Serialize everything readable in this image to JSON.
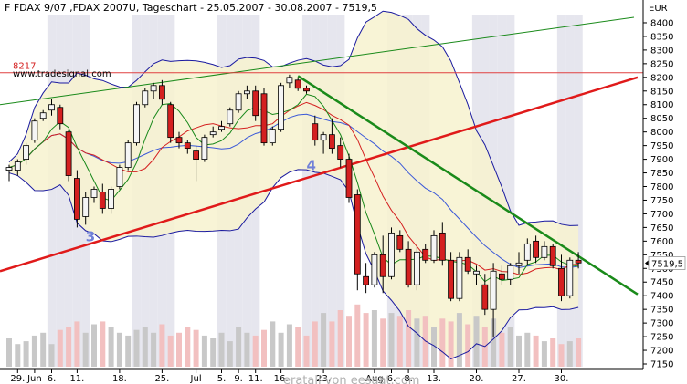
{
  "header": {
    "title": "F FDAX 9/07 ,FDAX 2007U, Tageschart - 25.05.2007 - 30.08.2007 - 7519,5",
    "watermark_top": "www.tradesignal.com",
    "watermark_bottom": "eratall von eesaat.com"
  },
  "chart_data": {
    "type": "candlestick",
    "currency_label": "EUR",
    "y_ticks": [
      "8400",
      "8350",
      "8300",
      "8250",
      "8200",
      "8150",
      "8100",
      "8050",
      "8000",
      "7950",
      "7900",
      "7850",
      "7800",
      "7750",
      "7700",
      "7650",
      "7600",
      "7550",
      "7500",
      "7450",
      "7400",
      "7350",
      "7300",
      "7250",
      "7200",
      "7150"
    ],
    "ylim": [
      7140,
      8430
    ],
    "x_ticks": [
      {
        "label": "29.",
        "i": 1
      },
      {
        "label": "Jun",
        "i": 3
      },
      {
        "label": "6.",
        "i": 5
      },
      {
        "label": "11.",
        "i": 8
      },
      {
        "label": "18.",
        "i": 13
      },
      {
        "label": "25.",
        "i": 18
      },
      {
        "label": "Jul",
        "i": 22
      },
      {
        "label": "5.",
        "i": 25
      },
      {
        "label": "9.",
        "i": 27
      },
      {
        "label": "11.",
        "i": 29
      },
      {
        "label": "16.",
        "i": 32
      },
      {
        "label": "23.",
        "i": 37
      },
      {
        "label": "Aug",
        "i": 43
      },
      {
        "label": "6.",
        "i": 45
      },
      {
        "label": "8.",
        "i": 47
      },
      {
        "label": "13.",
        "i": 50
      },
      {
        "label": "20.",
        "i": 55
      },
      {
        "label": "27.",
        "i": 60
      },
      {
        "label": "30.",
        "i": 65
      }
    ],
    "last_price_label": "7519,5",
    "last_price": 7519.5,
    "level_label": "8217",
    "level_value": 8217,
    "wave_labels": [
      {
        "text": "3",
        "i": 9,
        "price": 7600
      },
      {
        "text": "4",
        "i": 35,
        "price": 7860
      }
    ],
    "candles": [
      {
        "o": 7860,
        "h": 7880,
        "l": 7820,
        "c": 7870
      },
      {
        "o": 7860,
        "h": 7900,
        "l": 7840,
        "c": 7890
      },
      {
        "o": 7900,
        "h": 7960,
        "l": 7880,
        "c": 7950
      },
      {
        "o": 7970,
        "h": 8050,
        "l": 7960,
        "c": 8040
      },
      {
        "o": 8050,
        "h": 8080,
        "l": 8040,
        "c": 8070
      },
      {
        "o": 8080,
        "h": 8120,
        "l": 8060,
        "c": 8100
      },
      {
        "o": 8090,
        "h": 8100,
        "l": 8010,
        "c": 8030
      },
      {
        "o": 8000,
        "h": 8010,
        "l": 7820,
        "c": 7840
      },
      {
        "o": 7830,
        "h": 7860,
        "l": 7650,
        "c": 7680
      },
      {
        "o": 7690,
        "h": 7780,
        "l": 7660,
        "c": 7760
      },
      {
        "o": 7760,
        "h": 7800,
        "l": 7740,
        "c": 7790
      },
      {
        "o": 7780,
        "h": 7810,
        "l": 7700,
        "c": 7720
      },
      {
        "o": 7720,
        "h": 7800,
        "l": 7700,
        "c": 7790
      },
      {
        "o": 7800,
        "h": 7880,
        "l": 7790,
        "c": 7870
      },
      {
        "o": 7870,
        "h": 7970,
        "l": 7860,
        "c": 7960
      },
      {
        "o": 7960,
        "h": 8110,
        "l": 7950,
        "c": 8100
      },
      {
        "o": 8100,
        "h": 8160,
        "l": 8090,
        "c": 8150
      },
      {
        "o": 8150,
        "h": 8180,
        "l": 8120,
        "c": 8170
      },
      {
        "o": 8170,
        "h": 8190,
        "l": 8100,
        "c": 8120
      },
      {
        "o": 8100,
        "h": 8110,
        "l": 7960,
        "c": 7980
      },
      {
        "o": 7980,
        "h": 8000,
        "l": 7940,
        "c": 7960
      },
      {
        "o": 7960,
        "h": 7970,
        "l": 7920,
        "c": 7940
      },
      {
        "o": 7930,
        "h": 7950,
        "l": 7820,
        "c": 7900
      },
      {
        "o": 7900,
        "h": 7990,
        "l": 7890,
        "c": 7980
      },
      {
        "o": 7990,
        "h": 8020,
        "l": 7980,
        "c": 8000
      },
      {
        "o": 8010,
        "h": 8040,
        "l": 8000,
        "c": 8020
      },
      {
        "o": 8030,
        "h": 8090,
        "l": 8020,
        "c": 8080
      },
      {
        "o": 8080,
        "h": 8150,
        "l": 8070,
        "c": 8140
      },
      {
        "o": 8140,
        "h": 8170,
        "l": 8120,
        "c": 8150
      },
      {
        "o": 8150,
        "h": 8170,
        "l": 8040,
        "c": 8060
      },
      {
        "o": 8140,
        "h": 8160,
        "l": 7950,
        "c": 7960
      },
      {
        "o": 7960,
        "h": 8020,
        "l": 7950,
        "c": 8010
      },
      {
        "o": 8010,
        "h": 8180,
        "l": 8000,
        "c": 8170
      },
      {
        "o": 8180,
        "h": 8210,
        "l": 8160,
        "c": 8200
      },
      {
        "o": 8190,
        "h": 8200,
        "l": 8150,
        "c": 8160
      },
      {
        "o": 8160,
        "h": 8170,
        "l": 8140,
        "c": 8150
      },
      {
        "o": 8030,
        "h": 8060,
        "l": 7950,
        "c": 7970
      },
      {
        "o": 7970,
        "h": 8000,
        "l": 7920,
        "c": 7990
      },
      {
        "o": 7990,
        "h": 8050,
        "l": 7920,
        "c": 7940
      },
      {
        "o": 7950,
        "h": 7980,
        "l": 7870,
        "c": 7900
      },
      {
        "o": 7900,
        "h": 7920,
        "l": 7740,
        "c": 7760
      },
      {
        "o": 7770,
        "h": 7790,
        "l": 7420,
        "c": 7480
      },
      {
        "o": 7470,
        "h": 7520,
        "l": 7410,
        "c": 7440
      },
      {
        "o": 7440,
        "h": 7560,
        "l": 7430,
        "c": 7550
      },
      {
        "o": 7550,
        "h": 7620,
        "l": 7410,
        "c": 7470
      },
      {
        "o": 7470,
        "h": 7650,
        "l": 7460,
        "c": 7630
      },
      {
        "o": 7620,
        "h": 7640,
        "l": 7560,
        "c": 7570
      },
      {
        "o": 7570,
        "h": 7600,
        "l": 7430,
        "c": 7440
      },
      {
        "o": 7440,
        "h": 7580,
        "l": 7420,
        "c": 7560
      },
      {
        "o": 7570,
        "h": 7590,
        "l": 7520,
        "c": 7530
      },
      {
        "o": 7530,
        "h": 7640,
        "l": 7520,
        "c": 7620
      },
      {
        "o": 7630,
        "h": 7670,
        "l": 7510,
        "c": 7530
      },
      {
        "o": 7530,
        "h": 7560,
        "l": 7380,
        "c": 7390
      },
      {
        "o": 7390,
        "h": 7560,
        "l": 7380,
        "c": 7540
      },
      {
        "o": 7540,
        "h": 7570,
        "l": 7480,
        "c": 7490
      },
      {
        "o": 7480,
        "h": 7510,
        "l": 7440,
        "c": 7490
      },
      {
        "o": 7440,
        "h": 7480,
        "l": 7330,
        "c": 7350
      },
      {
        "o": 7350,
        "h": 7520,
        "l": 7250,
        "c": 7490
      },
      {
        "o": 7480,
        "h": 7510,
        "l": 7440,
        "c": 7460
      },
      {
        "o": 7460,
        "h": 7520,
        "l": 7440,
        "c": 7510
      },
      {
        "o": 7510,
        "h": 7560,
        "l": 7480,
        "c": 7520
      },
      {
        "o": 7530,
        "h": 7610,
        "l": 7510,
        "c": 7590
      },
      {
        "o": 7600,
        "h": 7620,
        "l": 7520,
        "c": 7540
      },
      {
        "o": 7540,
        "h": 7600,
        "l": 7530,
        "c": 7580
      },
      {
        "o": 7580,
        "h": 7590,
        "l": 7500,
        "c": 7510
      },
      {
        "o": 7500,
        "h": 7550,
        "l": 7380,
        "c": 7400
      },
      {
        "o": 7400,
        "h": 7540,
        "l": 7390,
        "c": 7530
      },
      {
        "o": 7530,
        "h": 7560,
        "l": 7500,
        "c": 7520
      }
    ],
    "volume": [
      50,
      40,
      45,
      55,
      60,
      40,
      65,
      70,
      80,
      60,
      75,
      80,
      70,
      60,
      55,
      65,
      70,
      60,
      75,
      55,
      60,
      70,
      65,
      55,
      50,
      60,
      45,
      70,
      60,
      55,
      65,
      80,
      60,
      75,
      70,
      55,
      80,
      95,
      80,
      100,
      90,
      110,
      95,
      100,
      85,
      95,
      90,
      100,
      85,
      90,
      70,
      85,
      80,
      95,
      75,
      90,
      70,
      85,
      60,
      70,
      55,
      60,
      55,
      45,
      50,
      40,
      45,
      50
    ],
    "colors": {
      "bull": "#f5f5f5",
      "bear": "#d42020",
      "bollinger": "#1a1aa0",
      "ma_fast": "#18881a",
      "ma_slow": "#d42020",
      "ma_mid": "#3a58d8",
      "trend_green": "#1a8a1a",
      "trend_red": "#e01a1a",
      "band_fill": "#f7f2cf",
      "label_blue": "#7080d8"
    }
  }
}
